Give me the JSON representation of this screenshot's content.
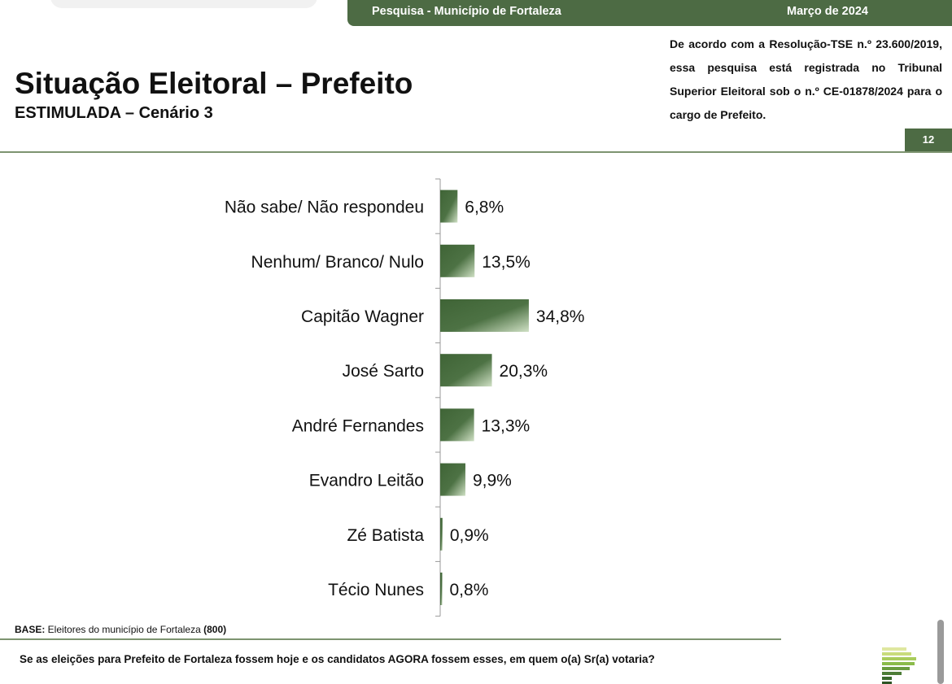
{
  "header": {
    "survey": "Pesquisa - Município de Fortaleza",
    "date": "Março de 2024",
    "page_number": "12"
  },
  "title": "Situação Eleitoral – Prefeito",
  "subtitle": "ESTIMULADA – Cenário 3",
  "registration_note": "De acordo com a Resolução-TSE n.º 23.600/2019, essa pesquisa está registrada no Tribunal Superior Eleitoral sob o n.º CE-01878/2024 para o cargo de Prefeito.",
  "base": {
    "label": "BASE:",
    "text": " Eleitores do município de Fortaleza ",
    "count": "(800)"
  },
  "question": "Se as eleições para Prefeito de Fortaleza fossem hoje e os candidatos AGORA fossem esses, em quem o(a) Sr(a) votaria?",
  "colors": {
    "accent": "#4d6b44",
    "bar": "#456b3c"
  },
  "chart_data": {
    "type": "bar",
    "orientation": "horizontal",
    "categories": [
      "Não sabe/ Não respondeu",
      "Nenhum/ Branco/ Nulo",
      "Capitão Wagner",
      "José Sarto",
      "André Fernandes",
      "Evandro Leitão",
      "Zé Batista",
      "Técio Nunes"
    ],
    "values": [
      6.8,
      13.5,
      34.8,
      20.3,
      13.3,
      9.9,
      0.9,
      0.8
    ],
    "labels": [
      "6,8%",
      "13,5%",
      "34,8%",
      "20,3%",
      "13,3%",
      "9,9%",
      "0,9%",
      "0,8%"
    ],
    "title": "",
    "xlabel": "",
    "ylabel": "",
    "xlim": [
      0,
      100
    ],
    "grid": false
  }
}
